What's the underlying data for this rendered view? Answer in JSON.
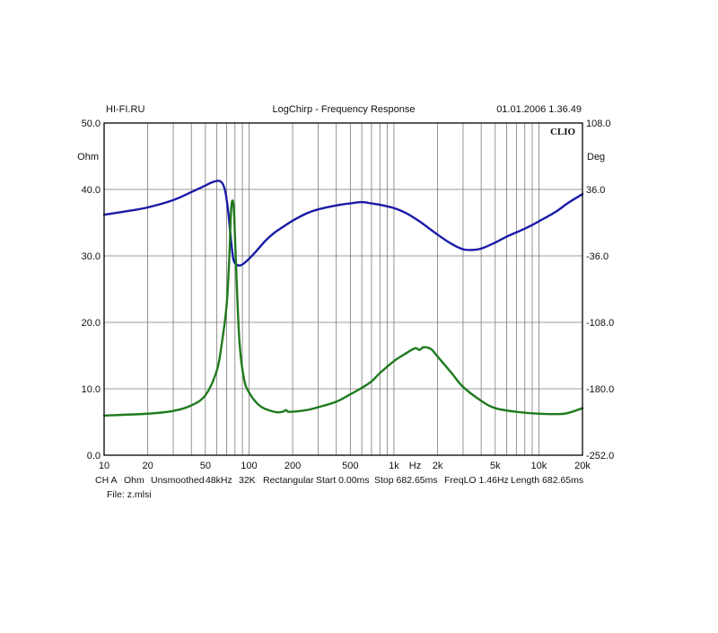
{
  "header": {
    "left": "HI-FI.RU",
    "center": "LogChirp - Frequency Response",
    "right": "01.01.2006 1.36.49"
  },
  "brand_label": "CLIO",
  "footer": {
    "settings": [
      "CH A",
      "Ohm",
      "Unsmoothed",
      "48kHz",
      "32K",
      "Rectangular",
      "Start 0.00ms",
      "Stop 682.65ms",
      "FreqLO 1.46Hz",
      "Length 682.65ms"
    ],
    "file": "File: z.mlsi"
  },
  "colors": {
    "impedance": "#1a1aa8",
    "phase": "#1e7a1e",
    "grid": "#7a7a7a",
    "frame": "#000000"
  },
  "chart_data": {
    "type": "line",
    "title": "LogChirp - Frequency Response",
    "xscale": "log",
    "xlim": [
      10,
      20000
    ],
    "x_tick_labels": [
      "10",
      "20",
      "50",
      "100",
      "200",
      "500",
      "1k",
      "Hz",
      "2k",
      "5k",
      "10k",
      "20k"
    ],
    "x_tick_values": [
      10,
      20,
      50,
      100,
      200,
      500,
      1000,
      1400,
      2000,
      5000,
      10000,
      20000
    ],
    "y_left": {
      "unit_label": "Ohm",
      "lim": [
        0,
        50
      ],
      "ticks": [
        "0.0",
        "10.0",
        "20.0",
        "30.0",
        "40.0",
        "50.0"
      ]
    },
    "y_right": {
      "unit_label": "Deg",
      "lim": [
        -252,
        108
      ],
      "ticks": [
        "-252.0",
        "-180.0",
        "-108.0",
        "-36.0",
        "36.0",
        "108.0"
      ]
    },
    "grid": true,
    "series": [
      {
        "axis": "left",
        "color": "#1a1aa8",
        "points": [
          [
            10,
            36.2
          ],
          [
            15,
            36.8
          ],
          [
            20,
            37.3
          ],
          [
            30,
            38.4
          ],
          [
            40,
            39.6
          ],
          [
            50,
            40.6
          ],
          [
            56,
            41.1
          ],
          [
            62,
            41.3
          ],
          [
            66,
            40.8
          ],
          [
            69,
            39.4
          ],
          [
            72,
            36.5
          ],
          [
            75,
            32.5
          ],
          [
            78,
            29.5
          ],
          [
            82,
            28.7
          ],
          [
            88,
            28.6
          ],
          [
            95,
            29.1
          ],
          [
            110,
            30.5
          ],
          [
            130,
            32.3
          ],
          [
            150,
            33.5
          ],
          [
            170,
            34.3
          ],
          [
            200,
            35.3
          ],
          [
            250,
            36.4
          ],
          [
            300,
            37.0
          ],
          [
            400,
            37.6
          ],
          [
            500,
            37.9
          ],
          [
            600,
            38.1
          ],
          [
            700,
            37.9
          ],
          [
            800,
            37.7
          ],
          [
            1000,
            37.2
          ],
          [
            1200,
            36.5
          ],
          [
            1500,
            35.2
          ],
          [
            2000,
            33.2
          ],
          [
            2500,
            31.8
          ],
          [
            3000,
            31.0
          ],
          [
            3500,
            30.9
          ],
          [
            4000,
            31.1
          ],
          [
            5000,
            32.0
          ],
          [
            6000,
            32.9
          ],
          [
            8000,
            34.1
          ],
          [
            10000,
            35.2
          ],
          [
            13000,
            36.6
          ],
          [
            16000,
            38.0
          ],
          [
            20000,
            39.3
          ]
        ]
      },
      {
        "axis": "right",
        "color": "#1e7a1e",
        "points": [
          [
            10,
            -209
          ],
          [
            20,
            -207
          ],
          [
            30,
            -204
          ],
          [
            40,
            -198
          ],
          [
            50,
            -187
          ],
          [
            60,
            -160
          ],
          [
            65,
            -130
          ],
          [
            70,
            -90
          ],
          [
            73,
            -40
          ],
          [
            75,
            10
          ],
          [
            77,
            24
          ],
          [
            79,
            8
          ],
          [
            82,
            -60
          ],
          [
            86,
            -130
          ],
          [
            92,
            -168
          ],
          [
            100,
            -184
          ],
          [
            120,
            -199
          ],
          [
            150,
            -205
          ],
          [
            170,
            -205
          ],
          [
            180,
            -203
          ],
          [
            190,
            -205
          ],
          [
            250,
            -203
          ],
          [
            300,
            -200
          ],
          [
            400,
            -194
          ],
          [
            500,
            -186
          ],
          [
            600,
            -179
          ],
          [
            700,
            -172
          ],
          [
            800,
            -163
          ],
          [
            1000,
            -150
          ],
          [
            1200,
            -142
          ],
          [
            1400,
            -136
          ],
          [
            1500,
            -138
          ],
          [
            1600,
            -135
          ],
          [
            1800,
            -137
          ],
          [
            2000,
            -145
          ],
          [
            2500,
            -163
          ],
          [
            3000,
            -178
          ],
          [
            4000,
            -193
          ],
          [
            5000,
            -201
          ],
          [
            7000,
            -205
          ],
          [
            10000,
            -207
          ],
          [
            15000,
            -207
          ],
          [
            20000,
            -201
          ]
        ]
      }
    ]
  }
}
